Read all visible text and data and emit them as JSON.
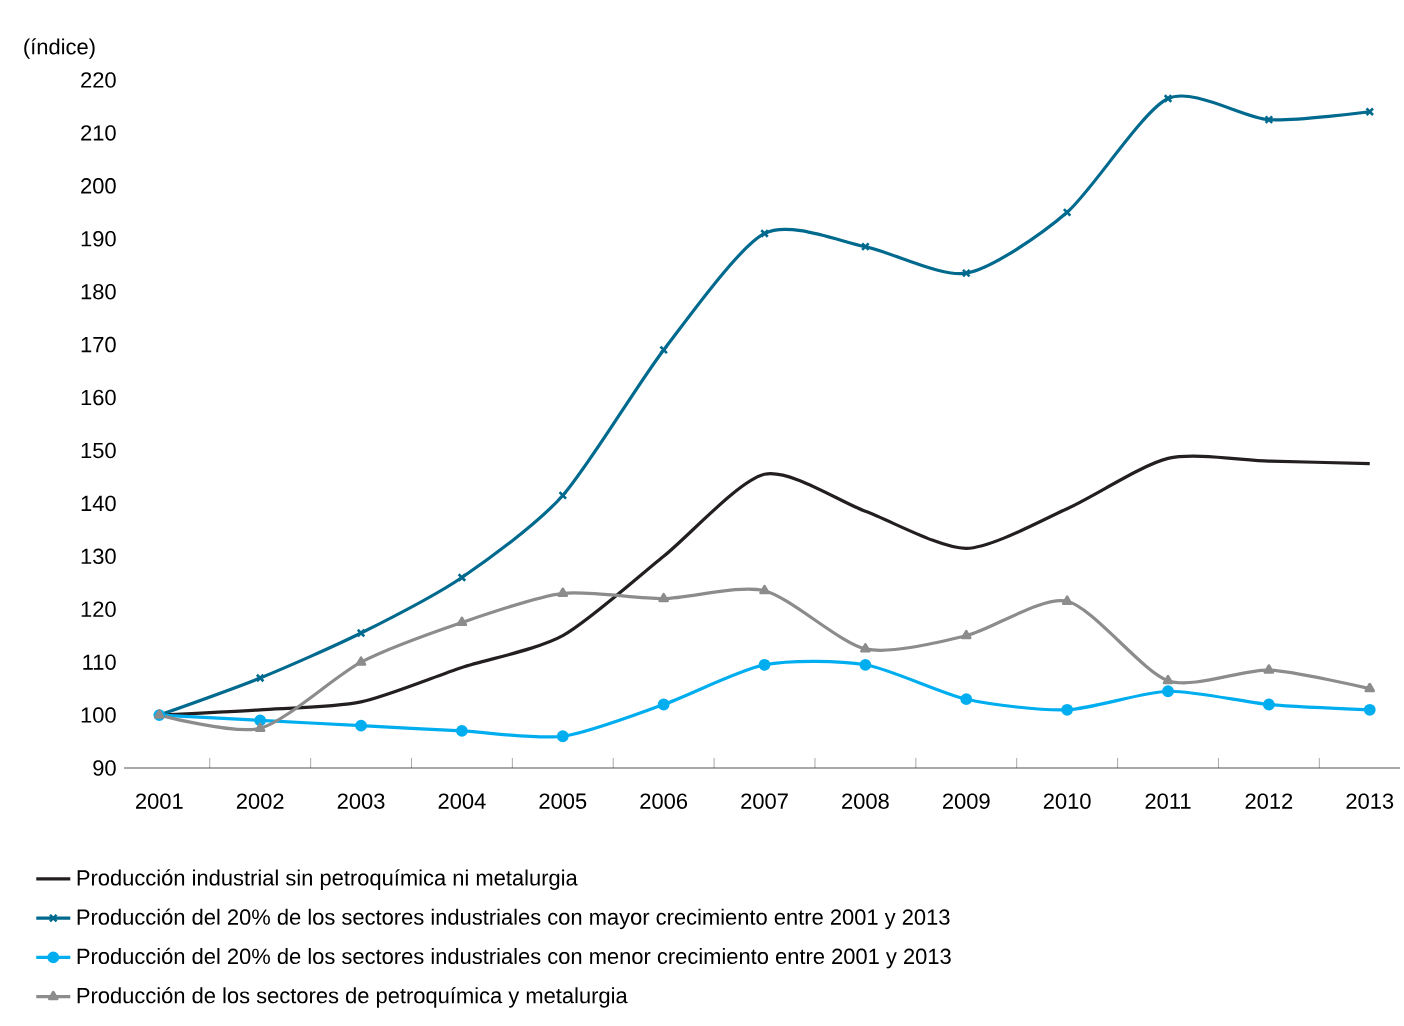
{
  "chart_data": {
    "type": "line",
    "ylabel": "(índice)",
    "categories": [
      "2001",
      "2002",
      "2003",
      "2004",
      "2005",
      "2006",
      "2007",
      "2008",
      "2009",
      "2010",
      "2011",
      "2012",
      "2013"
    ],
    "ylim": [
      90,
      220
    ],
    "yticks": [
      90,
      100,
      110,
      120,
      130,
      140,
      150,
      160,
      170,
      180,
      190,
      200,
      210,
      220
    ],
    "legend": "bottom",
    "grid": false,
    "line_style": "solid",
    "series": [
      {
        "name": "Producción industrial sin petroquímica ni metalurgia",
        "color": "#231f20",
        "marker": "none",
        "values": [
          100,
          101,
          102.5,
          109,
          115,
          130,
          145.5,
          138.5,
          131.5,
          139,
          148.5,
          148,
          147.5
        ]
      },
      {
        "name": "Producción del 20% de los sectores industriales con mayor crecimiento entre 2001 y 2013",
        "color": "#006a8e",
        "marker": "cross",
        "values": [
          100,
          107,
          115.5,
          126,
          141.5,
          169,
          191,
          188.5,
          183.5,
          195,
          216.5,
          212.5,
          214
        ]
      },
      {
        "name": "Producción del 20% de los sectores industriales con menor crecimiento entre 2001 y 2013",
        "color": "#00aeef",
        "marker": "circle",
        "values": [
          100,
          99,
          98,
          97,
          96,
          102,
          109.5,
          109.5,
          103,
          101,
          104.5,
          102,
          101
        ]
      },
      {
        "name": "Producción de los sectores de petroquímica y metalurgia",
        "color": "#8c8c8c",
        "marker": "triangle",
        "values": [
          100,
          97.5,
          110,
          117.5,
          123,
          122,
          123.5,
          112.5,
          115,
          121.5,
          106.5,
          108.5,
          105
        ]
      }
    ]
  }
}
